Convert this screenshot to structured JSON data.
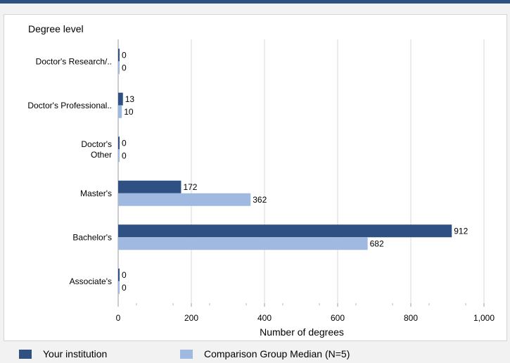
{
  "chart_data": {
    "type": "bar",
    "orientation": "horizontal",
    "title": "Degree level",
    "xlabel": "Number of degrees",
    "xlim": [
      0,
      1000
    ],
    "xticks": [
      "0",
      "200",
      "400",
      "600",
      "800",
      "1,000"
    ],
    "xtick_values": [
      0,
      200,
      400,
      600,
      800,
      1000
    ],
    "grid": true,
    "legend_position": "bottom",
    "categories": [
      [
        "Doctor's",
        "Research/.."
      ],
      [
        "Doctor's",
        "Professional.."
      ],
      [
        "Doctor's",
        "Other"
      ],
      [
        "Master's"
      ],
      [
        "Bachelor's"
      ],
      [
        "Associate's"
      ]
    ],
    "series": [
      {
        "name": "Your institution",
        "color": "#2e5082",
        "values": [
          0,
          13,
          0,
          172,
          912,
          0
        ]
      },
      {
        "name": "Comparison Group Median (N=5)",
        "color": "#9fb9e0",
        "values": [
          0,
          10,
          0,
          362,
          682,
          0
        ]
      }
    ]
  }
}
